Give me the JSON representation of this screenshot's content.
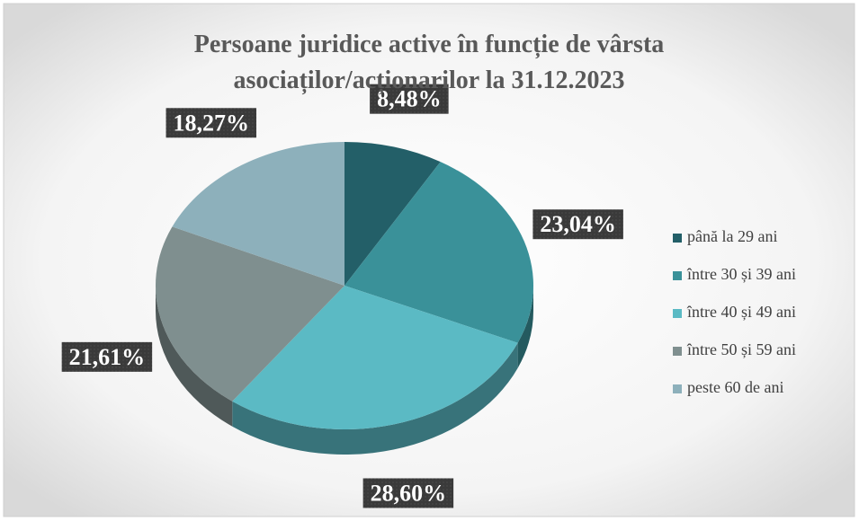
{
  "chart_data": {
    "type": "pie",
    "title": "Persoane juridice active în funcție de vârsta asociaților/acționarilor la 31.12.2023",
    "categories": [
      "până la 29 ani",
      "între 30 și 39 ani",
      "între 40 și 49 ani",
      "între 50 și 59 ani",
      "peste 60 de ani"
    ],
    "values": [
      8.48,
      23.04,
      28.6,
      21.61,
      18.27
    ],
    "value_labels": [
      "8,48%",
      "23,04%",
      "28,60%",
      "21,61%",
      "18,27%"
    ],
    "colors": [
      "#235f68",
      "#3a9199",
      "#5bbac4",
      "#7f8f8f",
      "#8db0bb"
    ],
    "legend": "right"
  }
}
